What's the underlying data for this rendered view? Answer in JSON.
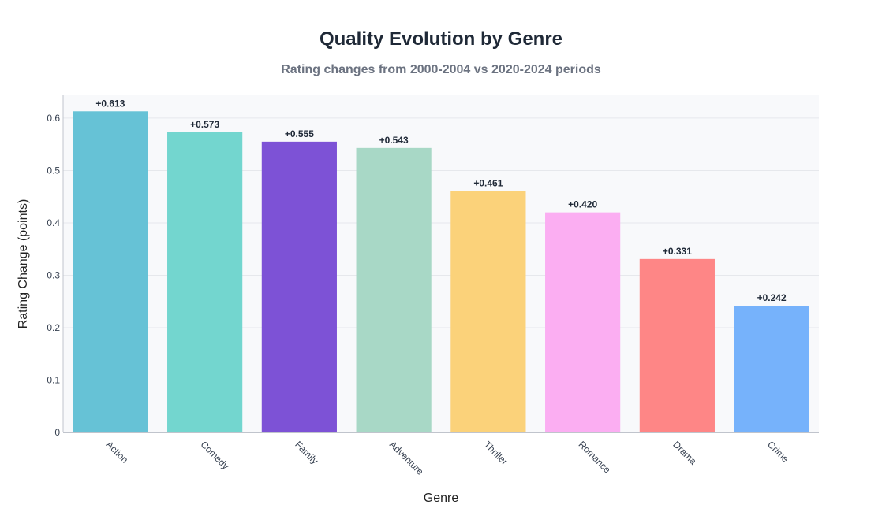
{
  "colors": {
    "plot_bg": "#f8f9fb",
    "grid": "#e6e8ec",
    "axis": "#c0c4cc",
    "label": "#374151",
    "value_label": "#1f2937"
  },
  "chart_data": {
    "type": "bar",
    "title": "Quality Evolution by Genre",
    "subtitle": "Rating changes from 2000-2004 vs 2020-2024 periods",
    "xlabel": "Genre",
    "ylabel": "Rating Change (points)",
    "ylim": [
      0,
      0.645
    ],
    "yticks": [
      0,
      0.1,
      0.2,
      0.3,
      0.4,
      0.5,
      0.6
    ],
    "ytick_labels": [
      "0",
      "0.1",
      "0.2",
      "0.3",
      "0.4",
      "0.5",
      "0.6"
    ],
    "grid": true,
    "categories": [
      "Action",
      "Comedy",
      "Family",
      "Adventure",
      "Thriller",
      "Romance",
      "Drama",
      "Crime"
    ],
    "values": [
      0.613,
      0.573,
      0.555,
      0.543,
      0.461,
      0.42,
      0.331,
      0.242
    ],
    "data_labels": [
      "+0.613",
      "+0.573",
      "+0.555",
      "+0.543",
      "+0.461",
      "+0.420",
      "+0.331",
      "+0.242"
    ],
    "bar_colors": [
      "#66c2d6",
      "#73d6cf",
      "#7d52d6",
      "#a8d8c6",
      "#fbd27a",
      "#fbaef2",
      "#fe8686",
      "#76b2fb"
    ]
  }
}
